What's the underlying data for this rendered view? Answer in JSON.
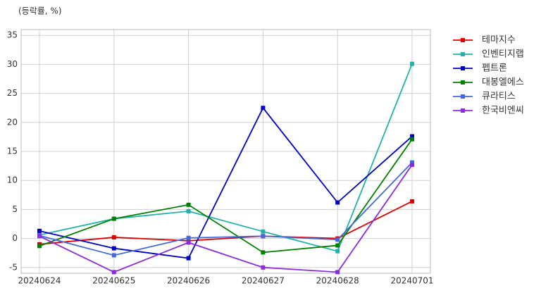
{
  "chart_data": {
    "type": "line",
    "title": "(등락률, %)",
    "categories": [
      "20240624",
      "20240625",
      "20240626",
      "20240627",
      "20240628",
      "20240701"
    ],
    "series": [
      {
        "name": "테마지수",
        "color": "#e00000",
        "values": [
          -1.0,
          0.2,
          -0.4,
          0.4,
          0.0,
          6.4
        ]
      },
      {
        "name": "인벤티지랩",
        "color": "#20b2aa",
        "values": [
          0.6,
          3.4,
          4.7,
          1.2,
          -2.2,
          30.1
        ]
      },
      {
        "name": "펩트론",
        "color": "#0000cd",
        "values": [
          1.3,
          -1.7,
          -3.4,
          22.5,
          6.2,
          17.6
        ]
      },
      {
        "name": "대봉엘에스",
        "color": "#008000",
        "values": [
          -1.3,
          3.4,
          5.8,
          -2.4,
          -1.2,
          17.1
        ]
      },
      {
        "name": "큐라티스",
        "color": "#4169e1",
        "values": [
          0.5,
          -2.9,
          0.1,
          0.4,
          -0.2,
          13.1
        ]
      },
      {
        "name": "한국비엔씨",
        "color": "#8a2be2",
        "values": [
          0.4,
          -5.8,
          -0.7,
          -5.0,
          -5.8,
          12.7
        ]
      }
    ],
    "ylim": [
      -6,
      36
    ],
    "yticks": [
      -5,
      0,
      5,
      10,
      15,
      20,
      25,
      30,
      35
    ],
    "grid": true,
    "legend": "outside-right"
  }
}
